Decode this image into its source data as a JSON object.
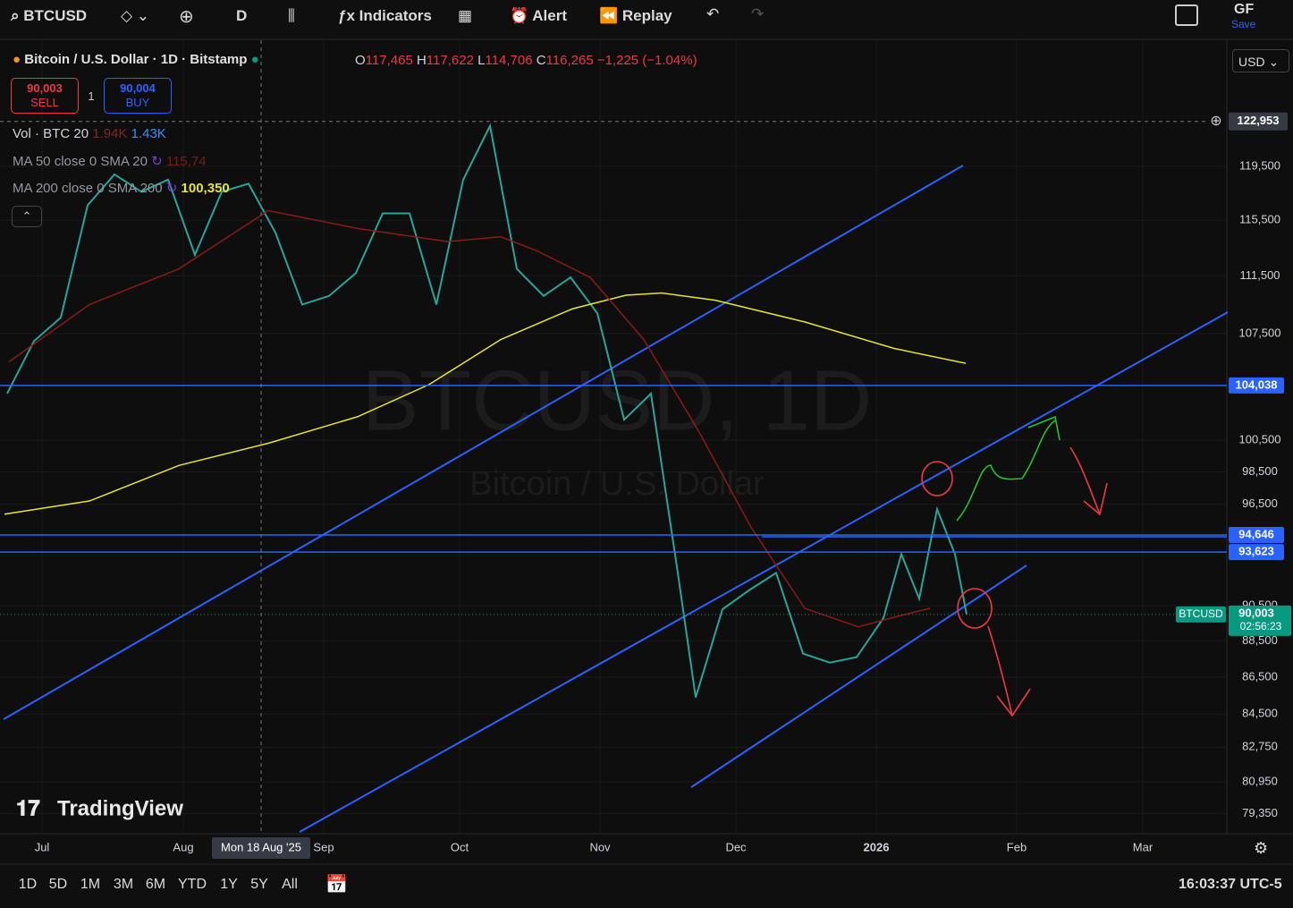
{
  "toolbar": {
    "symbol": "BTCUSD",
    "interval": "D",
    "indicators": "Indicators",
    "alert": "Alert",
    "replay": "Replay",
    "user": "GF",
    "save": "Save"
  },
  "legend": {
    "title": "Bitcoin / U.S. Dollar · 1D · Bitstamp",
    "open": {
      "letter": "O",
      "value": "117,465"
    },
    "high": {
      "letter": "H",
      "value": "117,622"
    },
    "low": {
      "letter": "L",
      "value": "114,706"
    },
    "close": {
      "letter": "C",
      "value": "116,265"
    },
    "change": "−1,225 (−1.04%)",
    "currency": "USD",
    "sell": {
      "price": "90,003",
      "label": "SELL"
    },
    "spread": "1",
    "buy": {
      "price": "90,004",
      "label": "BUY"
    },
    "volume": {
      "name": "Vol · BTC 20",
      "v1": "1.94K",
      "v2": "1.43K"
    },
    "ma50": {
      "name": "MA 50 close 0 SMA 20",
      "value": "115,74"
    },
    "ma200": {
      "name": "MA 200 close 0 SMA 200",
      "value": "100,350"
    }
  },
  "watermark": {
    "symbol": "BTCUSD, 1D",
    "name": "Bitcoin / U.S. Dollar"
  },
  "chart_data": {
    "type": "line",
    "log_scale": true,
    "ylim": [
      78430,
      129430
    ],
    "yticks": [
      {
        "value": 119500,
        "label": "119,500"
      },
      {
        "value": 115500,
        "label": "115,500"
      },
      {
        "value": 111500,
        "label": "111,500"
      },
      {
        "value": 107500,
        "label": "107,500"
      },
      {
        "value": 100500,
        "label": "100,500"
      },
      {
        "value": 98500,
        "label": "98,500"
      },
      {
        "value": 96500,
        "label": "96,500"
      },
      {
        "value": 90500,
        "label": "90,500"
      },
      {
        "value": 88500,
        "label": "88,500"
      },
      {
        "value": 86500,
        "label": "86,500"
      },
      {
        "value": 84500,
        "label": "84,500"
      },
      {
        "value": 82750,
        "label": "82,750"
      },
      {
        "value": 80950,
        "label": "80,950"
      },
      {
        "value": 79350,
        "label": "79,350"
      }
    ],
    "series": [
      {
        "name": "BTCUSD",
        "color": "#26a69a",
        "values": [
          103500,
          107000,
          108600,
          116600,
          118900,
          117600,
          118500,
          113000,
          117600,
          118200,
          114600,
          109500,
          110100,
          111700,
          116000,
          116000,
          109500,
          118500,
          122600,
          112000,
          110100,
          111400,
          108900,
          101800,
          103500,
          92400,
          85400,
          90300,
          91400,
          92400,
          87800,
          87300,
          87600,
          89800,
          93500,
          90900,
          96200,
          93500,
          90003
        ]
      },
      {
        "name": "MA 200",
        "color": "#e6e62a",
        "values": [
          95900,
          96700,
          98900,
          100300,
          102000,
          104100,
          107100,
          109200,
          110150,
          110300,
          109800,
          108300,
          106500,
          105500
        ]
      },
      {
        "name": "MA 50",
        "color": "#8b1a1a",
        "values": [
          105600,
          109500,
          112000,
          116200,
          114900,
          113950,
          114300,
          113300,
          111400,
          107100,
          101200,
          95100,
          90350,
          89300,
          89850,
          90350
        ]
      }
    ],
    "levels": [
      {
        "value": 104038,
        "label": "104,038"
      },
      {
        "value": 94646,
        "label": "94,646"
      },
      {
        "value": 93623,
        "label": "93,623"
      }
    ],
    "last_price": {
      "value": 90003,
      "label": "90,003",
      "tag": "BTCUSD",
      "countdown": "02:56:23"
    },
    "crosshair": {
      "value": 122953,
      "label": "122,953",
      "date": "Mon 18 Aug '25"
    }
  },
  "time_axis": [
    "Jul",
    "Aug",
    "Sep",
    "Oct",
    "Nov",
    "Dec",
    "2026",
    "Feb",
    "Mar"
  ],
  "bottom_bar": {
    "ranges": [
      "1D",
      "5D",
      "1M",
      "3M",
      "6M",
      "YTD",
      "1Y",
      "5Y",
      "All"
    ],
    "clock": "16:03:37 UTC-5"
  },
  "logo": "TradingView"
}
